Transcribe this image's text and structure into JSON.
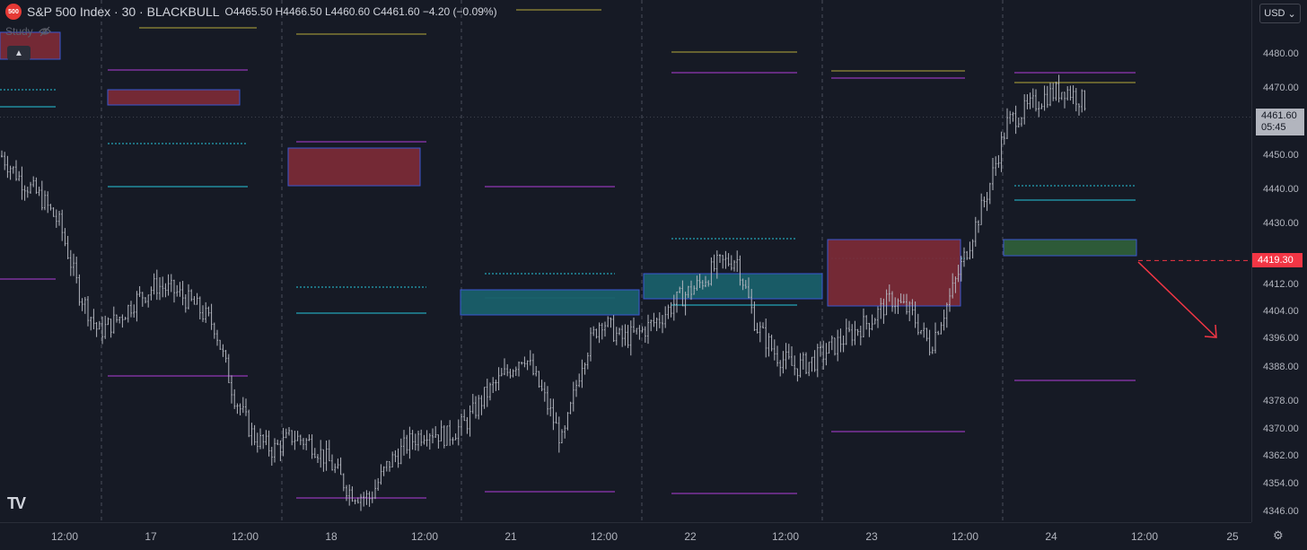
{
  "header": {
    "symbol_badge": "500",
    "title": "S&P 500 Index · 30 · BLACKBULL",
    "ohlc": [
      {
        "k": "O",
        "v": "4465.50"
      },
      {
        "k": "H",
        "v": "4466.50"
      },
      {
        "k": "L",
        "v": "4460.60"
      },
      {
        "k": "C",
        "v": "4461.60"
      },
      {
        "k": "",
        "v": "−4.20 (−0.09%)"
      }
    ]
  },
  "study": {
    "label": "Study",
    "icon": "eye-off-icon"
  },
  "collapse": {
    "icon": "chevron-up-icon"
  },
  "currency": {
    "label": "USD",
    "icon": "chevron-down-icon"
  },
  "price_axis": {
    "labels": [
      "4480.00",
      "4470.00",
      "4450.00",
      "4440.00",
      "4430.00",
      "4412.00",
      "4404.00",
      "4396.00",
      "4388.00",
      "4378.00",
      "4370.00",
      "4362.00",
      "4354.00",
      "4346.00"
    ],
    "last_price": "4461.60",
    "countdown": "05:45",
    "marked_price": "4419.30"
  },
  "time_axis": {
    "labels": [
      "12:00",
      "17",
      "12:00",
      "18",
      "12:00",
      "21",
      "12:00",
      "22",
      "12:00",
      "23",
      "12:00",
      "24",
      "12:00",
      "25"
    ],
    "settings_icon": "gear-icon"
  },
  "logo": {
    "text": "TV"
  },
  "colors": {
    "background": "#161a25",
    "candle": "#b2b5be",
    "bear_zone": "#7a2a36",
    "bull_zone_teal": "#1a5f6a",
    "bull_zone_green": "#2f5e3a",
    "zone_border": "#3b5bdb",
    "magenta_line": "#b03fd9",
    "cyan_line": "#26c6da",
    "yellow_line": "#b7a93a",
    "marker_red": "#f23645"
  },
  "chart_data": {
    "type": "candlestick",
    "symbol": "S&P 500 Index",
    "interval": "30",
    "x_tick_labels": [
      "12:00",
      "17",
      "12:00",
      "18",
      "12:00",
      "21",
      "12:00",
      "22",
      "12:00",
      "23",
      "12:00",
      "24",
      "12:00",
      "25"
    ],
    "ylim": [
      4346,
      4484
    ],
    "y_tick_labels": [
      4480,
      4470,
      4450,
      4440,
      4430,
      4412,
      4404,
      4396,
      4388,
      4378,
      4370,
      4362,
      4354,
      4346
    ],
    "approx_close_path": [
      4450,
      4443,
      4438,
      4430,
      4410,
      4398,
      4402,
      4408,
      4412,
      4410,
      4406,
      4400,
      4380,
      4368,
      4364,
      4368,
      4366,
      4360,
      4352,
      4350,
      4360,
      4366,
      4370,
      4368,
      4372,
      4380,
      4386,
      4392,
      4380,
      4366,
      4390,
      4402,
      4396,
      4398,
      4402,
      4408,
      4412,
      4418,
      4420,
      4400,
      4392,
      4388,
      4390,
      4394,
      4398,
      4402,
      4408,
      4404,
      4394,
      4408,
      4424,
      4440,
      4460,
      4464,
      4468,
      4470,
      4466
    ],
    "last_close": 4461.6,
    "marked_level": 4419.3
  }
}
